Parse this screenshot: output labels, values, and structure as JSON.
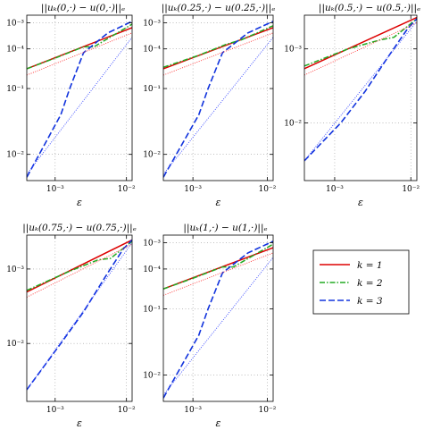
{
  "chart_data": {
    "type": "line",
    "xscale": "log",
    "yscale": "log",
    "grid": true,
    "xlim": [
      0.0004,
      0.012
    ],
    "xticks": [
      {
        "value": 0.001,
        "label": "10⁻³"
      },
      {
        "value": 0.01,
        "label": "10⁻²"
      }
    ],
    "xlabel": "ε",
    "legend": {
      "placement": "right-of-bottom-row",
      "entries": [
        {
          "label": "k = 1",
          "color": "#dd0000",
          "dash": "solid"
        },
        {
          "label": "k = 2",
          "color": "#22aa22",
          "dash": "dashdot"
        },
        {
          "label": "k = 3",
          "color": "#1133dd",
          "dash": "dashed"
        }
      ]
    },
    "panels": [
      {
        "title": "||uₖ(0,·) − u(0,·)||ₑ",
        "ylim": [
          0.004,
          1.3
        ],
        "yticks": [
          {
            "value": 0.01,
            "label": "10⁻²"
          },
          {
            "value": 0.1,
            "label": "10⁻¹"
          },
          {
            "value": 0.4,
            "label": "10⁻⁴"
          },
          {
            "value": 1.0,
            "label": "10⁻³"
          }
        ],
        "series": [
          {
            "name": "k = 1",
            "x": [
              0.0004,
              0.012
            ],
            "y": [
              0.2,
              0.84
            ]
          },
          {
            "name": "k = 2",
            "x": [
              0.0004,
              0.001,
              0.0025,
              0.0035,
              0.012
            ],
            "y": [
              0.2,
              0.29,
              0.43,
              0.43,
              0.95
            ]
          },
          {
            "name": "k = 3",
            "x": [
              0.0004,
              0.0012,
              0.0016,
              0.0025,
              0.0055,
              0.012
            ],
            "y": [
              0.0045,
              0.04,
              0.1,
              0.35,
              0.7,
              1.05
            ]
          },
          {
            "name": "k = 1 reference",
            "x": [
              0.0004,
              0.012
            ],
            "y": [
              0.16,
              0.7
            ]
          },
          {
            "name": "k = 3 reference",
            "x": [
              0.0004,
              0.012
            ],
            "y": [
              0.005,
              0.6
            ]
          }
        ]
      },
      {
        "title": "||uₖ(0.25,·) − u(0.25,·)||ₑ",
        "ylim": [
          0.004,
          1.3
        ],
        "yticks": [
          {
            "value": 0.01,
            "label": "10⁻²"
          },
          {
            "value": 0.1,
            "label": "10⁻¹"
          },
          {
            "value": 0.4,
            "label": "10⁻⁴"
          },
          {
            "value": 1.0,
            "label": "10⁻³"
          }
        ],
        "series": [
          {
            "name": "k = 1",
            "x": [
              0.0004,
              0.012
            ],
            "y": [
              0.2,
              0.84
            ]
          },
          {
            "name": "k = 2",
            "x": [
              0.0004,
              0.0012,
              0.0028,
              0.0045,
              0.012
            ],
            "y": [
              0.21,
              0.32,
              0.47,
              0.55,
              0.9
            ]
          },
          {
            "name": "k = 3",
            "x": [
              0.0004,
              0.0012,
              0.0016,
              0.0025,
              0.0055,
              0.012
            ],
            "y": [
              0.0045,
              0.04,
              0.1,
              0.35,
              0.7,
              1.05
            ]
          },
          {
            "name": "k = 1 reference",
            "x": [
              0.0004,
              0.012
            ],
            "y": [
              0.16,
              0.7
            ]
          },
          {
            "name": "k = 3 reference",
            "x": [
              0.0004,
              0.012
            ],
            "y": [
              0.005,
              0.6
            ]
          }
        ]
      },
      {
        "title": "||uₖ(0.5,·) − u(0.5,·)||ₑ",
        "ylim": [
          0.004,
          1.3
        ],
        "yticks": [
          {
            "value": 0.03,
            "label": "10⁻²"
          },
          {
            "value": 0.4,
            "label": "10⁻³"
          }
        ],
        "series": [
          {
            "name": "k = 1",
            "x": [
              0.0004,
              0.012
            ],
            "y": [
              0.2,
              1.2
            ]
          },
          {
            "name": "k = 2",
            "x": [
              0.0004,
              0.0015,
              0.004,
              0.006,
              0.012
            ],
            "y": [
              0.22,
              0.4,
              0.55,
              0.6,
              1.15
            ]
          },
          {
            "name": "k = 3",
            "x": [
              0.0004,
              0.0012,
              0.0025,
              0.005,
              0.009,
              0.012
            ],
            "y": [
              0.008,
              0.03,
              0.09,
              0.3,
              0.8,
              1.15
            ]
          },
          {
            "name": "k = 1 reference",
            "x": [
              0.0004,
              0.012
            ],
            "y": [
              0.16,
              1.0
            ]
          },
          {
            "name": "k = 3 reference",
            "x": [
              0.0004,
              0.012
            ],
            "y": [
              0.008,
              1.05
            ]
          }
        ]
      },
      {
        "title": "||uₖ(0.75,·) − u(0.75,·)||ₑ",
        "ylim": [
          0.004,
          1.3
        ],
        "yticks": [
          {
            "value": 0.03,
            "label": "10⁻²"
          },
          {
            "value": 0.4,
            "label": "10⁻³"
          }
        ],
        "series": [
          {
            "name": "k = 1",
            "x": [
              0.0004,
              0.012
            ],
            "y": [
              0.18,
              1.1
            ]
          },
          {
            "name": "k = 2",
            "x": [
              0.0004,
              0.0015,
              0.004,
              0.006,
              0.012
            ],
            "y": [
              0.19,
              0.36,
              0.55,
              0.58,
              1.05
            ]
          },
          {
            "name": "k = 3",
            "x": [
              0.0004,
              0.0012,
              0.0025,
              0.005,
              0.009,
              0.012
            ],
            "y": [
              0.006,
              0.03,
              0.09,
              0.3,
              0.8,
              1.1
            ]
          },
          {
            "name": "k = 1 reference",
            "x": [
              0.0004,
              0.012
            ],
            "y": [
              0.15,
              0.95
            ]
          },
          {
            "name": "k = 3 reference",
            "x": [
              0.0004,
              0.012
            ],
            "y": [
              0.006,
              1.0
            ]
          }
        ]
      },
      {
        "title": "||uₖ(1,·) − u(1,·)||ₑ",
        "ylim": [
          0.004,
          1.3
        ],
        "yticks": [
          {
            "value": 0.01,
            "label": "10⁻²"
          },
          {
            "value": 0.1,
            "label": "10⁻¹"
          },
          {
            "value": 0.4,
            "label": "10⁻⁴"
          },
          {
            "value": 1.0,
            "label": "10⁻³"
          }
        ],
        "series": [
          {
            "name": "k = 1",
            "x": [
              0.0004,
              0.012
            ],
            "y": [
              0.2,
              0.84
            ]
          },
          {
            "name": "k = 2",
            "x": [
              0.0004,
              0.001,
              0.0025,
              0.0035,
              0.012
            ],
            "y": [
              0.2,
              0.29,
              0.43,
              0.43,
              0.95
            ]
          },
          {
            "name": "k = 3",
            "x": [
              0.0004,
              0.0012,
              0.0016,
              0.0025,
              0.0055,
              0.012
            ],
            "y": [
              0.0045,
              0.04,
              0.1,
              0.35,
              0.7,
              1.05
            ]
          },
          {
            "name": "k = 1 reference",
            "x": [
              0.0004,
              0.012
            ],
            "y": [
              0.16,
              0.7
            ]
          },
          {
            "name": "k = 3 reference",
            "x": [
              0.0004,
              0.012
            ],
            "y": [
              0.005,
              0.6
            ]
          }
        ]
      }
    ]
  }
}
